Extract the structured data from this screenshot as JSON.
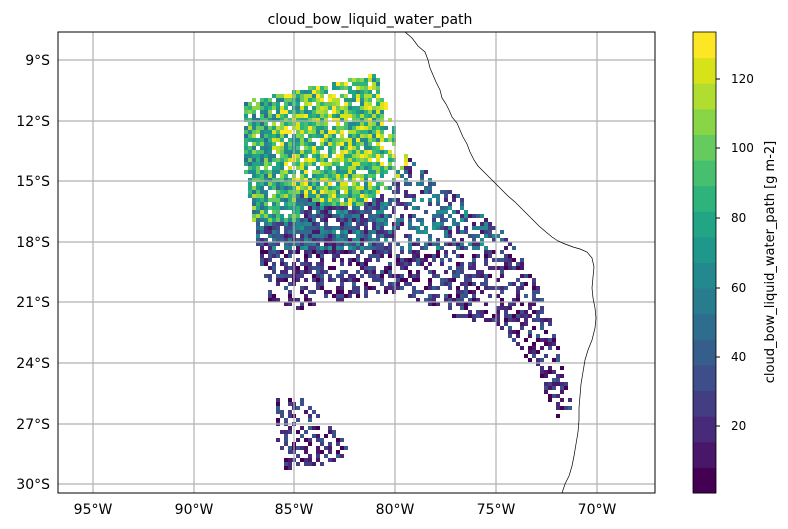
{
  "map": {
    "title": "cloud_bow_liquid_water_path",
    "lon_ticks": [
      "95°W",
      "90°W",
      "85°W",
      "80°W",
      "75°W",
      "70°W"
    ],
    "lat_ticks": [
      "9°S",
      "12°S",
      "15°S",
      "18°S",
      "21°S",
      "24°S",
      "27°S",
      "30°S"
    ],
    "grid": true,
    "coastline_color": "#000000"
  },
  "colorbar": {
    "label": "cloud_bow_liquid_water_path [g m-2]",
    "ticks": [
      "20",
      "40",
      "60",
      "80",
      "100",
      "120"
    ],
    "colors": [
      "#440154",
      "#481769",
      "#472a7a",
      "#433d84",
      "#3d4e8a",
      "#355e8d",
      "#2e6d8e",
      "#297b8e",
      "#23898e",
      "#1f978b",
      "#21a585",
      "#2eb37c",
      "#46c06f",
      "#65cb5e",
      "#89d548",
      "#b0dd2f",
      "#d8e219",
      "#fde725"
    ]
  }
}
